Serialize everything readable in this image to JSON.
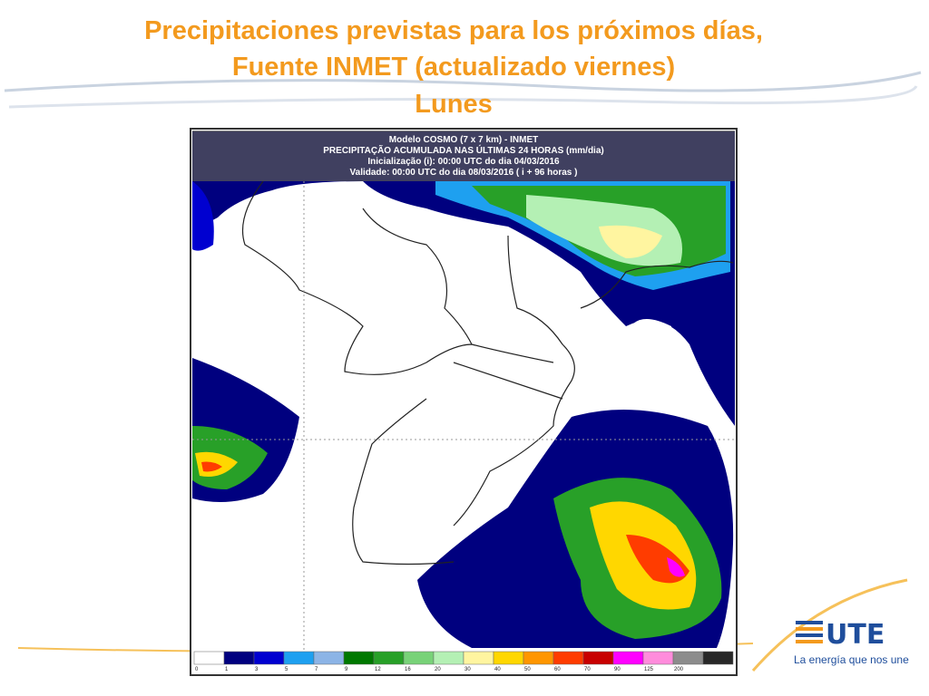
{
  "title": [
    "Precipitaciones previstas para los próximos días,",
    "Fuente INMET (actualizado viernes)",
    "Lunes"
  ],
  "map": {
    "header": [
      "Modelo COSMO (7 x 7 km) - INMET",
      "PRECIPITAÇÃO ACUMULADA NAS ÚLTIMAS 24 HORAS (mm/dia)",
      "Inicialização (i): 00:00 UTC do dia 04/03/2016",
      "Validade: 00:00 UTC do dia 08/03/2016 ( i + 96 horas )"
    ],
    "colorbar": {
      "labels": [
        0,
        1,
        3,
        5,
        7,
        9,
        12,
        16,
        20,
        30,
        40,
        50,
        60,
        70,
        90,
        125,
        200
      ],
      "colors": [
        "#ffffff",
        "#00007f",
        "#0000d0",
        "#1ea0f0",
        "#8cb4e6",
        "#007800",
        "#28a028",
        "#78d278",
        "#b4f0b4",
        "#fff5a0",
        "#ffd700",
        "#ff9600",
        "#ff3c00",
        "#c80000",
        "#ff00ff",
        "#ff8cdc",
        "#8c8c8c",
        "#282828"
      ]
    }
  },
  "logo": {
    "name": "UTE",
    "slogan": "La energía que nos une"
  }
}
